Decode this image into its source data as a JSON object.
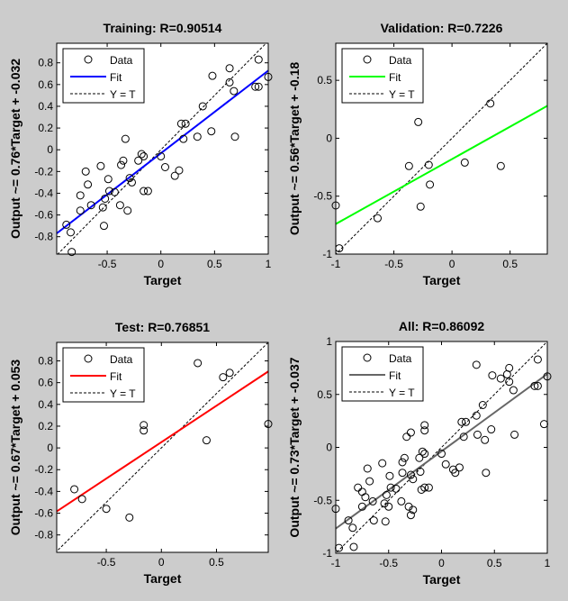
{
  "chart_data": [
    {
      "id": "training",
      "type": "scatter",
      "title": "Training: R=0.90514",
      "xlabel": "Target",
      "ylabel": "Output ~= 0.76*Target + -0.032",
      "fit": {
        "slope": 0.76,
        "intercept": -0.032,
        "color": "#0000ff"
      },
      "xlim": [
        -0.97,
        1.0
      ],
      "ylim": [
        -0.96,
        0.98
      ],
      "xticks": [
        {
          "v": -0.5,
          "label": "-0.5"
        },
        {
          "v": 0,
          "label": "0"
        },
        {
          "v": 0.5,
          "label": "0.5"
        },
        {
          "v": 1,
          "label": "1"
        }
      ],
      "yticks": [
        {
          "v": -0.8,
          "label": "-0.8"
        },
        {
          "v": -0.6,
          "label": "-0.6"
        },
        {
          "v": -0.4,
          "label": "-0.4"
        },
        {
          "v": -0.2,
          "label": "-0.2"
        },
        {
          "v": 0,
          "label": "0"
        },
        {
          "v": 0.2,
          "label": "0.2"
        },
        {
          "v": 0.4,
          "label": "0.4"
        },
        {
          "v": 0.6,
          "label": "0.6"
        },
        {
          "v": 0.8,
          "label": "0.8"
        }
      ],
      "legend": {
        "position": "top-left",
        "entries": [
          "Data",
          "Fit",
          "Y = T"
        ]
      },
      "points": [
        [
          -0.88,
          -0.69
        ],
        [
          -0.84,
          -0.76
        ],
        [
          -0.83,
          -0.94
        ],
        [
          -0.75,
          -0.56
        ],
        [
          -0.75,
          -0.42
        ],
        [
          -0.7,
          -0.2
        ],
        [
          -0.68,
          -0.32
        ],
        [
          -0.65,
          -0.51
        ],
        [
          -0.56,
          -0.15
        ],
        [
          -0.54,
          -0.53
        ],
        [
          -0.53,
          -0.7
        ],
        [
          -0.52,
          -0.45
        ],
        [
          -0.49,
          -0.27
        ],
        [
          -0.48,
          -0.38
        ],
        [
          -0.43,
          -0.39
        ],
        [
          -0.38,
          -0.51
        ],
        [
          -0.37,
          -0.14
        ],
        [
          -0.35,
          -0.1
        ],
        [
          -0.33,
          0.1
        ],
        [
          -0.31,
          -0.56
        ],
        [
          -0.29,
          -0.26
        ],
        [
          -0.27,
          -0.3
        ],
        [
          -0.21,
          -0.1
        ],
        [
          -0.18,
          -0.04
        ],
        [
          -0.16,
          -0.06
        ],
        [
          -0.16,
          -0.38
        ],
        [
          -0.12,
          -0.38
        ],
        [
          0.0,
          -0.06
        ],
        [
          0.04,
          -0.16
        ],
        [
          0.13,
          -0.24
        ],
        [
          0.17,
          -0.19
        ],
        [
          0.19,
          0.24
        ],
        [
          0.23,
          0.24
        ],
        [
          0.21,
          0.1
        ],
        [
          0.34,
          0.12
        ],
        [
          0.39,
          0.4
        ],
        [
          0.47,
          0.17
        ],
        [
          0.48,
          0.68
        ],
        [
          0.64,
          0.75
        ],
        [
          0.64,
          0.62
        ],
        [
          0.68,
          0.54
        ],
        [
          0.69,
          0.12
        ],
        [
          0.88,
          0.58
        ],
        [
          0.91,
          0.58
        ],
        [
          0.91,
          0.83
        ],
        [
          1.0,
          0.67
        ]
      ]
    },
    {
      "id": "validation",
      "type": "scatter",
      "title": "Validation: R=0.7226",
      "xlabel": "Target",
      "ylabel": "Output ~= 0.56*Target + -0.18",
      "fit": {
        "slope": 0.56,
        "intercept": -0.18,
        "color": "#00ff00"
      },
      "xlim": [
        -1.0,
        0.82
      ],
      "ylim": [
        -1.0,
        0.82
      ],
      "xticks": [
        {
          "v": -1,
          "label": "-1"
        },
        {
          "v": -0.5,
          "label": "-0.5"
        },
        {
          "v": 0,
          "label": "0"
        },
        {
          "v": 0.5,
          "label": "0.5"
        }
      ],
      "yticks": [
        {
          "v": -1,
          "label": "-1"
        },
        {
          "v": -0.5,
          "label": "-0.5"
        },
        {
          "v": 0,
          "label": "0"
        },
        {
          "v": 0.5,
          "label": "0.5"
        }
      ],
      "legend": {
        "position": "top-left",
        "entries": [
          "Data",
          "Fit",
          "Y = T"
        ]
      },
      "points": [
        [
          -1.0,
          -0.58
        ],
        [
          -0.97,
          -0.95
        ],
        [
          -0.64,
          -0.69
        ],
        [
          -0.37,
          -0.24
        ],
        [
          -0.29,
          0.14
        ],
        [
          -0.27,
          -0.59
        ],
        [
          -0.2,
          -0.23
        ],
        [
          -0.19,
          -0.4
        ],
        [
          0.11,
          -0.21
        ],
        [
          0.33,
          0.3
        ],
        [
          0.42,
          -0.24
        ]
      ]
    },
    {
      "id": "test",
      "type": "scatter",
      "title": "Test: R=0.76851",
      "xlabel": "Target",
      "ylabel": "Output ~= 0.67*Target + 0.053",
      "fit": {
        "slope": 0.67,
        "intercept": 0.053,
        "color": "#ff0000"
      },
      "xlim": [
        -0.95,
        0.97
      ],
      "ylim": [
        -0.96,
        0.97
      ],
      "xticks": [
        {
          "v": -0.5,
          "label": "-0.5"
        },
        {
          "v": 0,
          "label": "0"
        },
        {
          "v": 0.5,
          "label": "0.5"
        }
      ],
      "yticks": [
        {
          "v": -0.8,
          "label": "-0.8"
        },
        {
          "v": -0.6,
          "label": "-0.6"
        },
        {
          "v": -0.4,
          "label": "-0.4"
        },
        {
          "v": -0.2,
          "label": "-0.2"
        },
        {
          "v": 0,
          "label": "0"
        },
        {
          "v": 0.2,
          "label": "0.2"
        },
        {
          "v": 0.4,
          "label": "0.4"
        },
        {
          "v": 0.6,
          "label": "0.6"
        },
        {
          "v": 0.8,
          "label": "0.8"
        }
      ],
      "legend": {
        "position": "top-left",
        "entries": [
          "Data",
          "Fit",
          "Y = T"
        ]
      },
      "points": [
        [
          -0.79,
          -0.38
        ],
        [
          -0.72,
          -0.47
        ],
        [
          -0.5,
          -0.56
        ],
        [
          -0.29,
          -0.64
        ],
        [
          -0.16,
          0.21
        ],
        [
          -0.16,
          0.16
        ],
        [
          0.33,
          0.78
        ],
        [
          0.41,
          0.07
        ],
        [
          0.56,
          0.65
        ],
        [
          0.62,
          0.69
        ],
        [
          0.97,
          0.22
        ]
      ]
    },
    {
      "id": "all",
      "type": "scatter",
      "title": "All: R=0.86092",
      "xlabel": "Target",
      "ylabel": "Output ~= 0.73*Target + -0.037",
      "fit": {
        "slope": 0.73,
        "intercept": -0.037,
        "color": "#666666"
      },
      "xlim": [
        -1.0,
        1.0
      ],
      "ylim": [
        -1.0,
        1.0
      ],
      "xticks": [
        {
          "v": -1,
          "label": "-1"
        },
        {
          "v": -0.5,
          "label": "-0.5"
        },
        {
          "v": 0,
          "label": "0"
        },
        {
          "v": 0.5,
          "label": "0.5"
        },
        {
          "v": 1,
          "label": "1"
        }
      ],
      "yticks": [
        {
          "v": -1,
          "label": "-1"
        },
        {
          "v": -0.5,
          "label": "-0.5"
        },
        {
          "v": 0,
          "label": "0"
        },
        {
          "v": 0.5,
          "label": "0.5"
        },
        {
          "v": 1,
          "label": "1"
        }
      ],
      "legend": {
        "position": "top-left",
        "entries": [
          "Data",
          "Fit",
          "Y = T"
        ]
      },
      "points_from": [
        "training",
        "validation",
        "test"
      ]
    }
  ]
}
